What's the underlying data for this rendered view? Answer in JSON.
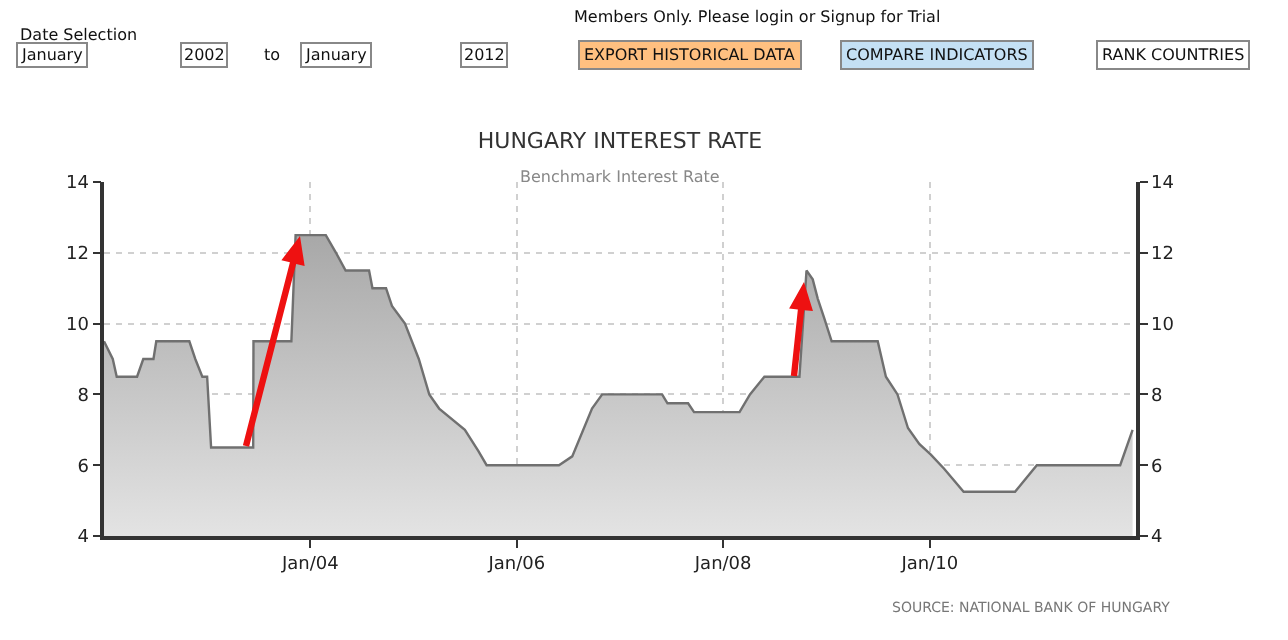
{
  "chart_data": {
    "type": "area",
    "title": "HUNGARY INTEREST RATE",
    "subtitle": "Benchmark Interest Rate",
    "x": [
      "2002-01-01",
      "2002-02-01",
      "2002-02-15",
      "2002-04-28",
      "2002-05-20",
      "2002-06-25",
      "2002-07-05",
      "2002-10-30",
      "2002-11-20",
      "2002-12-15",
      "2003-01-01",
      "2003-01-15",
      "2003-06-13",
      "2003-06-14",
      "2003-10-26",
      "2003-11-10",
      "2004-02-25",
      "2004-04-01",
      "2004-05-05",
      "2004-07-27",
      "2004-08-08",
      "2004-09-25",
      "2004-10-16",
      "2004-12-01",
      "2005-01-19",
      "2005-02-25",
      "2005-04-01",
      "2005-07-01",
      "2005-08-18",
      "2005-09-16",
      "2006-05-30",
      "2006-07-16",
      "2006-09-24",
      "2006-10-30",
      "2007-05-30",
      "2007-06-18",
      "2007-08-30",
      "2007-09-20",
      "2008-02-28",
      "2008-04-05",
      "2008-05-26",
      "2008-09-27",
      "2008-10-22",
      "2008-11-13",
      "2008-12-01",
      "2008-12-24",
      "2009-01-19",
      "2009-07-01",
      "2009-07-30",
      "2009-09-09",
      "2009-10-16",
      "2009-11-25",
      "2010-01-05",
      "2010-02-21",
      "2010-05-01",
      "2010-10-30",
      "2011-01-15",
      "2011-11-06",
      "2011-12-20"
    ],
    "series": [
      {
        "color": "#707070",
        "values": [
          9.5,
          9.0,
          8.5,
          8.5,
          9.0,
          9.0,
          9.5,
          9.5,
          9.0,
          8.5,
          8.5,
          6.5,
          6.5,
          9.5,
          9.5,
          12.5,
          12.5,
          12.0,
          11.5,
          11.5,
          11.0,
          11.0,
          10.5,
          10.0,
          9.0,
          8.0,
          7.6,
          7.0,
          6.4,
          6.0,
          6.0,
          6.25,
          7.6,
          8.0,
          8.0,
          7.75,
          7.75,
          7.5,
          7.5,
          8.0,
          8.5,
          8.5,
          11.5,
          11.25,
          10.7,
          10.15,
          9.5,
          9.5,
          8.5,
          8.0,
          7.05,
          6.6,
          6.3,
          5.9,
          5.25,
          5.25,
          6.0,
          6.0,
          7.0
        ]
      }
    ],
    "xlim": [
      "2002-01-01",
      "2012-01-01"
    ],
    "xticks": [
      {
        "value": "2004-01-01",
        "label": "Jan/04"
      },
      {
        "value": "2006-01-01",
        "label": "Jan/06"
      },
      {
        "value": "2008-01-01",
        "label": "Jan/08"
      },
      {
        "value": "2010-01-01",
        "label": "Jan/10"
      }
    ],
    "ylim": [
      4,
      14
    ],
    "yticks": [
      4,
      6,
      8,
      10,
      12,
      14
    ],
    "y2lim": [
      4,
      14
    ],
    "y2ticks": [
      4,
      6,
      8,
      10,
      12,
      14
    ],
    "grid": true,
    "legend": false,
    "annotations": [
      "Date Selection",
      "January",
      "2002",
      "to",
      "January",
      "2012",
      "Members Only. Please login or Signup for Trial",
      "EXPORT HISTORICAL DATA",
      "COMPARE INDICATORS",
      "RANK COUNTRIES",
      "SOURCE: NATIONAL BANK OF HUNGARY"
    ]
  }
}
